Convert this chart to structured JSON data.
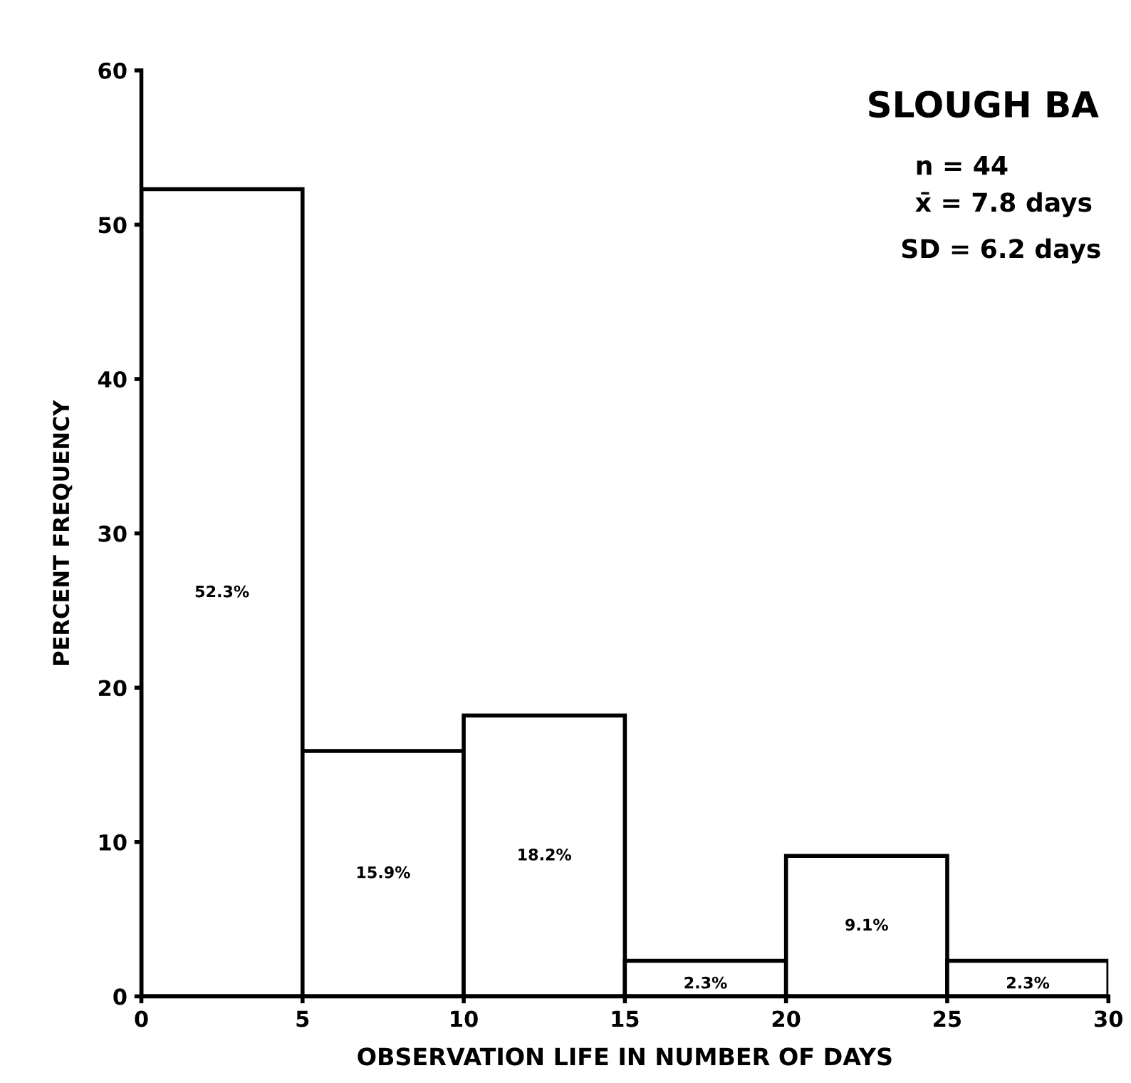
{
  "chart_data": {
    "type": "histogram",
    "title": "SLOUGH BA",
    "xlabel": "OBSERVATION LIFE IN NUMBER OF DAYS",
    "ylabel": "PERCENT FREQUENCY",
    "bins": [
      0,
      5,
      10,
      15,
      20,
      25,
      30
    ],
    "values": [
      52.3,
      15.9,
      18.2,
      2.3,
      9.1,
      2.3
    ],
    "value_labels": [
      "52.3%",
      "15.9%",
      "18.2%",
      "2.3%",
      "9.1%",
      "2.3%"
    ],
    "color": "#ffffff",
    "annotations": [
      "n = 44",
      "x̄ = 7.8 days",
      "SD = 6.2 days"
    ],
    "xlim": [
      0,
      30
    ],
    "xticks": [
      0,
      5,
      10,
      15,
      20,
      25,
      30
    ],
    "ylim": [
      0,
      60
    ],
    "yticks": [
      0,
      10,
      20,
      30,
      40,
      50,
      60
    ],
    "grid": false
  }
}
